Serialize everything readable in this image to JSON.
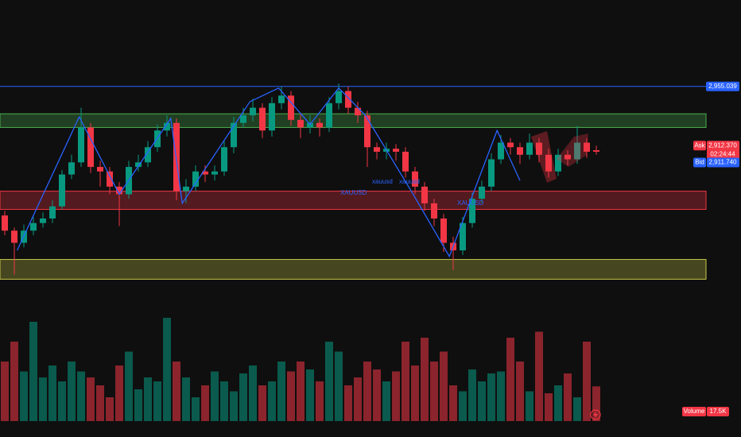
{
  "chart_data": {
    "type": "candlestick",
    "ylim": [
      2724,
      3012
    ],
    "up_color": "#089981",
    "down_color": "#f23645",
    "ohlc": [
      [
        2870,
        2873,
        2857,
        2860
      ],
      [
        2860,
        2862,
        2831,
        2852
      ],
      [
        2852,
        2864,
        2849,
        2860
      ],
      [
        2860,
        2869,
        2857,
        2865
      ],
      [
        2865,
        2872,
        2862,
        2868
      ],
      [
        2868,
        2880,
        2865,
        2876
      ],
      [
        2876,
        2900,
        2874,
        2897
      ],
      [
        2897,
        2910,
        2894,
        2905
      ],
      [
        2905,
        2941,
        2902,
        2928
      ],
      [
        2928,
        2931,
        2898,
        2902
      ],
      [
        2902,
        2906,
        2889,
        2899
      ],
      [
        2899,
        2902,
        2884,
        2889
      ],
      [
        2889,
        2892,
        2863,
        2884
      ],
      [
        2884,
        2906,
        2881,
        2902
      ],
      [
        2902,
        2910,
        2899,
        2905
      ],
      [
        2905,
        2919,
        2902,
        2915
      ],
      [
        2915,
        2930,
        2912,
        2926
      ],
      [
        2926,
        2936,
        2922,
        2931
      ],
      [
        2931,
        2934,
        2880,
        2886
      ],
      [
        2886,
        2894,
        2878,
        2889
      ],
      [
        2889,
        2903,
        2886,
        2899
      ],
      [
        2899,
        2903,
        2892,
        2897
      ],
      [
        2897,
        2903,
        2893,
        2899
      ],
      [
        2899,
        2919,
        2896,
        2915
      ],
      [
        2915,
        2935,
        2911,
        2931
      ],
      [
        2931,
        2941,
        2928,
        2936
      ],
      [
        2936,
        2947,
        2932,
        2941
      ],
      [
        2941,
        2944,
        2921,
        2926
      ],
      [
        2926,
        2948,
        2922,
        2944
      ],
      [
        2944,
        2955,
        2940,
        2949
      ],
      [
        2949,
        2952,
        2929,
        2933
      ],
      [
        2933,
        2937,
        2921,
        2928
      ],
      [
        2928,
        2936,
        2924,
        2931
      ],
      [
        2931,
        2934,
        2922,
        2928
      ],
      [
        2928,
        2948,
        2925,
        2944
      ],
      [
        2944,
        2957,
        2940,
        2952
      ],
      [
        2952,
        2955,
        2937,
        2941
      ],
      [
        2941,
        2945,
        2931,
        2936
      ],
      [
        2936,
        2939,
        2902,
        2915
      ],
      [
        2915,
        2918,
        2907,
        2912
      ],
      [
        2912,
        2918,
        2907,
        2914
      ],
      [
        2914,
        2917,
        2906,
        2912
      ],
      [
        2912,
        2915,
        2895,
        2899
      ],
      [
        2899,
        2902,
        2884,
        2889
      ],
      [
        2889,
        2892,
        2873,
        2878
      ],
      [
        2878,
        2881,
        2863,
        2868
      ],
      [
        2868,
        2871,
        2846,
        2852
      ],
      [
        2852,
        2856,
        2834,
        2847
      ],
      [
        2847,
        2869,
        2844,
        2865
      ],
      [
        2865,
        2885,
        2862,
        2881
      ],
      [
        2881,
        2893,
        2878,
        2889
      ],
      [
        2889,
        2911,
        2886,
        2907
      ],
      [
        2907,
        2923,
        2904,
        2918
      ],
      [
        2918,
        2921,
        2910,
        2915
      ],
      [
        2915,
        2918,
        2904,
        2910
      ],
      [
        2910,
        2924,
        2907,
        2918
      ],
      [
        2918,
        2921,
        2905,
        2910
      ],
      [
        2910,
        2914,
        2895,
        2899
      ],
      [
        2899,
        2914,
        2896,
        2910
      ],
      [
        2910,
        2913,
        2903,
        2907
      ],
      [
        2907,
        2929,
        2904,
        2918
      ],
      [
        2918,
        2921,
        2908,
        2912
      ],
      [
        2913,
        2916,
        2910,
        2912
      ]
    ],
    "volume": {
      "name": "Volume",
      "ylim": [
        0,
        60
      ],
      "values": [
        30,
        40,
        25,
        50,
        22,
        28,
        20,
        30,
        25,
        22,
        18,
        12,
        28,
        35,
        16,
        22,
        20,
        52,
        30,
        22,
        12,
        18,
        25,
        20,
        15,
        24,
        28,
        18,
        20,
        30,
        25,
        30,
        26,
        20,
        40,
        35,
        18,
        22,
        30,
        26,
        20,
        25,
        40,
        28,
        42,
        30,
        35,
        18,
        15,
        26,
        20,
        24,
        25,
        42,
        30,
        15,
        45,
        14,
        18,
        24,
        12,
        40,
        17.5
      ],
      "last_label": "17.5K"
    },
    "zones": [
      {
        "low": 2928,
        "high": 2937,
        "color": "#4caf50"
      },
      {
        "low": 2874,
        "high": 2886,
        "color": "#f23645"
      },
      {
        "low": 2828,
        "high": 2841,
        "color": "#c8c84a"
      }
    ],
    "level": {
      "value": 2955.039,
      "label": "2,955.039",
      "color": "#2962ff"
    },
    "zigzag": {
      "color": "#2962ff",
      "x": [
        1.3,
        7.8,
        12,
        17.4,
        18.6,
        25.7,
        28.7,
        32,
        35,
        37.8,
        42.8,
        46.6,
        51.6,
        54
      ],
      "values": [
        2847,
        2935,
        2884,
        2934,
        2878,
        2945,
        2954,
        2930,
        2954,
        2936,
        2884,
        2843,
        2926,
        2893
      ]
    },
    "annotations": [
      "XAUUSD",
      "xauusd",
      "xauusd",
      "XAUUSD"
    ],
    "quote": {
      "ask_name": "Ask",
      "ask": 2912.37,
      "ask_label": "2,912.370",
      "countdown": "02:24:44",
      "bid_name": "Bid",
      "bid": 2911.74,
      "bid_label": "2,911.740"
    }
  }
}
